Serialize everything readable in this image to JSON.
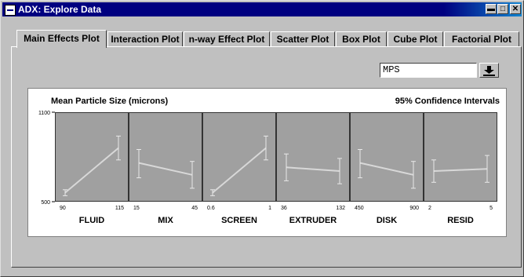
{
  "window": {
    "title": "ADX: Explore Data"
  },
  "tabs": [
    {
      "label": "Main Effects Plot",
      "active": true
    },
    {
      "label": "Interaction Plot",
      "active": false
    },
    {
      "label": "n-way Effect Plot",
      "active": false
    },
    {
      "label": "Scatter Plot",
      "active": false
    },
    {
      "label": "Box Plot",
      "active": false
    },
    {
      "label": "Cube Plot",
      "active": false
    },
    {
      "label": "Factorial Plot",
      "active": false
    }
  ],
  "response": {
    "selected": "MPS"
  },
  "chart_data": {
    "type": "line",
    "title": "Mean Particle Size (microns)",
    "subtitle": "95% Confidence Intervals",
    "ylim": [
      500,
      1100
    ],
    "yticks": [
      500,
      1100
    ],
    "grid": false,
    "colors": {
      "panel": "#a0a0a0",
      "line": "#d8d8d8"
    },
    "panels": [
      {
        "factor": "FLUID",
        "levels": [
          "90",
          "115"
        ],
        "means": [
          560,
          860
        ],
        "ci": [
          [
            540,
            580
          ],
          [
            780,
            940
          ]
        ]
      },
      {
        "factor": "MIX",
        "levels": [
          "15",
          "45"
        ],
        "means": [
          760,
          680
        ],
        "ci": [
          [
            660,
            850
          ],
          [
            590,
            770
          ]
        ]
      },
      {
        "factor": "SCREEN",
        "levels": [
          "0.6",
          "1"
        ],
        "means": [
          560,
          860
        ],
        "ci": [
          [
            540,
            580
          ],
          [
            780,
            940
          ]
        ]
      },
      {
        "factor": "EXTRUDER",
        "levels": [
          "36",
          "132"
        ],
        "means": [
          730,
          705
        ],
        "ci": [
          [
            640,
            820
          ],
          [
            620,
            790
          ]
        ]
      },
      {
        "factor": "DISK",
        "levels": [
          "450",
          "900"
        ],
        "means": [
          760,
          680
        ],
        "ci": [
          [
            660,
            850
          ],
          [
            590,
            770
          ]
        ]
      },
      {
        "factor": "RESID",
        "levels": [
          "2",
          "5"
        ],
        "means": [
          705,
          720
        ],
        "ci": [
          [
            630,
            780
          ],
          [
            630,
            810
          ]
        ]
      }
    ]
  }
}
